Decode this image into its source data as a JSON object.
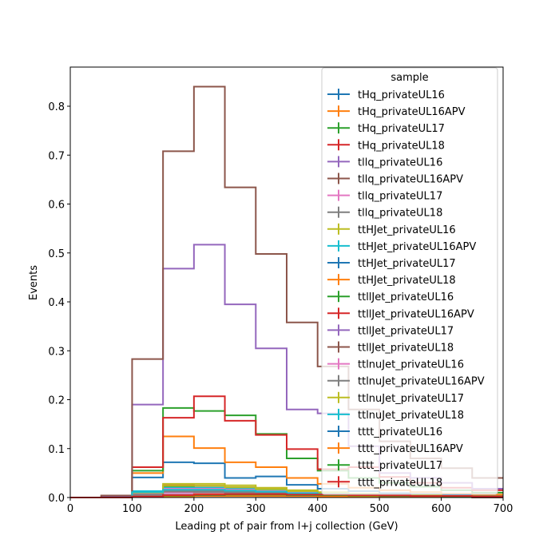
{
  "chart_data": {
    "type": "line",
    "xlabel": "Leading pt of pair from l+j collection (GeV)",
    "ylabel": "Events",
    "xlim": [
      0,
      700
    ],
    "ylim": [
      0,
      0.88
    ],
    "xticks": [
      "0",
      "100",
      "200",
      "300",
      "400",
      "500",
      "600",
      "700"
    ],
    "yticks": [
      "0.0",
      "0.1",
      "0.2",
      "0.3",
      "0.4",
      "0.5",
      "0.6",
      "0.7",
      "0.8"
    ],
    "grid": false,
    "legend_title": "sample",
    "legend_position": "top-right",
    "bin_edges": [
      0,
      50,
      100,
      150,
      200,
      250,
      300,
      350,
      400,
      450,
      500,
      550,
      600,
      650,
      700
    ],
    "series": [
      {
        "name": "tHq_privateUL16",
        "color": "#1f77b4",
        "values": [
          0,
          0,
          0.005,
          0.012,
          0.011,
          0.01,
          0.008,
          0.006,
          0.004,
          0.003,
          0.002,
          0.002,
          0.001,
          0.001
        ]
      },
      {
        "name": "tHq_privateUL16APV",
        "color": "#ff7f0e",
        "values": [
          0,
          0,
          0.004,
          0.01,
          0.009,
          0.008,
          0.007,
          0.005,
          0.004,
          0.003,
          0.002,
          0.001,
          0.001,
          0.001
        ]
      },
      {
        "name": "tHq_privateUL17",
        "color": "#2ca02c",
        "values": [
          0,
          0,
          0.01,
          0.022,
          0.02,
          0.018,
          0.015,
          0.011,
          0.008,
          0.006,
          0.004,
          0.003,
          0.002,
          0.002
        ]
      },
      {
        "name": "tHq_privateUL18",
        "color": "#d62728",
        "values": [
          0,
          0,
          0.012,
          0.025,
          0.024,
          0.021,
          0.017,
          0.013,
          0.009,
          0.007,
          0.005,
          0.004,
          0.003,
          0.002
        ]
      },
      {
        "name": "tllq_privateUL16",
        "color": "#9467bd",
        "values": [
          0,
          0,
          0.003,
          0.006,
          0.006,
          0.005,
          0.004,
          0.003,
          0.002,
          0.002,
          0.001,
          0.001,
          0.001,
          0.001
        ]
      },
      {
        "name": "tllq_privateUL16APV",
        "color": "#8c564b",
        "values": [
          0,
          0,
          0.003,
          0.005,
          0.005,
          0.004,
          0.003,
          0.003,
          0.002,
          0.001,
          0.001,
          0.001,
          0.001,
          0.0
        ]
      },
      {
        "name": "tllq_privateUL17",
        "color": "#e377c2",
        "values": [
          0,
          0,
          0.005,
          0.01,
          0.01,
          0.008,
          0.007,
          0.005,
          0.004,
          0.003,
          0.002,
          0.002,
          0.001,
          0.001
        ]
      },
      {
        "name": "tllq_privateUL18",
        "color": "#7f7f7f",
        "values": [
          0,
          0,
          0.006,
          0.012,
          0.011,
          0.01,
          0.008,
          0.006,
          0.004,
          0.003,
          0.002,
          0.002,
          0.001,
          0.001
        ]
      },
      {
        "name": "ttHJet_privateUL16",
        "color": "#bcbd22",
        "values": [
          0,
          0,
          0.012,
          0.028,
          0.028,
          0.025,
          0.02,
          0.015,
          0.011,
          0.008,
          0.006,
          0.004,
          0.003,
          0.002
        ]
      },
      {
        "name": "ttHJet_privateUL16APV",
        "color": "#17becf",
        "values": [
          0,
          0,
          0.013,
          0.02,
          0.02,
          0.018,
          0.015,
          0.011,
          0.008,
          0.006,
          0.004,
          0.003,
          0.002,
          0.002
        ]
      },
      {
        "name": "ttHJet_privateUL17",
        "color": "#1f77b4",
        "values": [
          0,
          0,
          0.041,
          0.072,
          0.07,
          0.04,
          0.043,
          0.026,
          0.018,
          0.013,
          0.009,
          0.007,
          0.005,
          0.004
        ]
      },
      {
        "name": "ttHJet_privateUL18",
        "color": "#ff7f0e",
        "values": [
          0,
          0,
          0.05,
          0.125,
          0.101,
          0.072,
          0.062,
          0.04,
          0.028,
          0.02,
          0.015,
          0.011,
          0.008,
          0.006
        ]
      },
      {
        "name": "ttllJet_privateUL16",
        "color": "#2ca02c",
        "values": [
          0,
          0,
          0.055,
          0.183,
          0.177,
          0.168,
          0.13,
          0.08,
          0.055,
          0.04,
          0.03,
          0.022,
          0.015,
          0.01
        ]
      },
      {
        "name": "ttllJet_privateUL16APV",
        "color": "#d62728",
        "values": [
          0,
          0,
          0.062,
          0.163,
          0.207,
          0.157,
          0.128,
          0.099,
          0.058,
          0.062,
          0.042,
          0.03,
          0.02,
          0.015
        ]
      },
      {
        "name": "ttllJet_privateUL17",
        "color": "#9467bd",
        "values": [
          0,
          0.003,
          0.19,
          0.468,
          0.517,
          0.395,
          0.305,
          0.18,
          0.172,
          0.105,
          0.05,
          0.04,
          0.03,
          0.018
        ]
      },
      {
        "name": "ttllJet_privateUL18",
        "color": "#8c564b",
        "values": [
          0,
          0.004,
          0.283,
          0.708,
          0.84,
          0.634,
          0.498,
          0.358,
          0.268,
          0.18,
          0.115,
          0.08,
          0.06,
          0.04
        ]
      },
      {
        "name": "ttlnuJet_privateUL16",
        "color": "#e377c2",
        "values": [
          0,
          0,
          0.008,
          0.018,
          0.018,
          0.016,
          0.013,
          0.01,
          0.007,
          0.005,
          0.004,
          0.003,
          0.002,
          0.001
        ]
      },
      {
        "name": "ttlnuJet_privateUL16APV",
        "color": "#7f7f7f",
        "values": [
          0,
          0,
          0.006,
          0.014,
          0.014,
          0.012,
          0.01,
          0.008,
          0.006,
          0.004,
          0.003,
          0.002,
          0.002,
          0.001
        ]
      },
      {
        "name": "ttlnuJet_privateUL17",
        "color": "#bcbd22",
        "values": [
          0,
          0,
          0.01,
          0.024,
          0.024,
          0.021,
          0.017,
          0.013,
          0.009,
          0.007,
          0.005,
          0.004,
          0.003,
          0.002
        ]
      },
      {
        "name": "ttlnuJet_privateUL18",
        "color": "#17becf",
        "values": [
          0,
          0,
          0.011,
          0.016,
          0.016,
          0.014,
          0.012,
          0.009,
          0.007,
          0.005,
          0.004,
          0.003,
          0.002,
          0.002
        ]
      },
      {
        "name": "tttt_privateUL16",
        "color": "#1f77b4",
        "values": [
          0,
          0,
          0.001,
          0.002,
          0.003,
          0.003,
          0.003,
          0.003,
          0.003,
          0.002,
          0.002,
          0.002,
          0.001,
          0.001
        ]
      },
      {
        "name": "tttt_privateUL16APV",
        "color": "#ff7f0e",
        "values": [
          0,
          0,
          0.001,
          0.002,
          0.003,
          0.003,
          0.003,
          0.003,
          0.002,
          0.002,
          0.002,
          0.001,
          0.001,
          0.001
        ]
      },
      {
        "name": "tttt_privateUL17",
        "color": "#2ca02c",
        "values": [
          0,
          0,
          0.002,
          0.004,
          0.005,
          0.006,
          0.006,
          0.005,
          0.005,
          0.004,
          0.003,
          0.003,
          0.002,
          0.002
        ]
      },
      {
        "name": "tttt_privateUL18",
        "color": "#d62728",
        "values": [
          0,
          0,
          0.002,
          0.005,
          0.006,
          0.007,
          0.007,
          0.006,
          0.006,
          0.005,
          0.004,
          0.003,
          0.003,
          0.002
        ]
      }
    ]
  }
}
